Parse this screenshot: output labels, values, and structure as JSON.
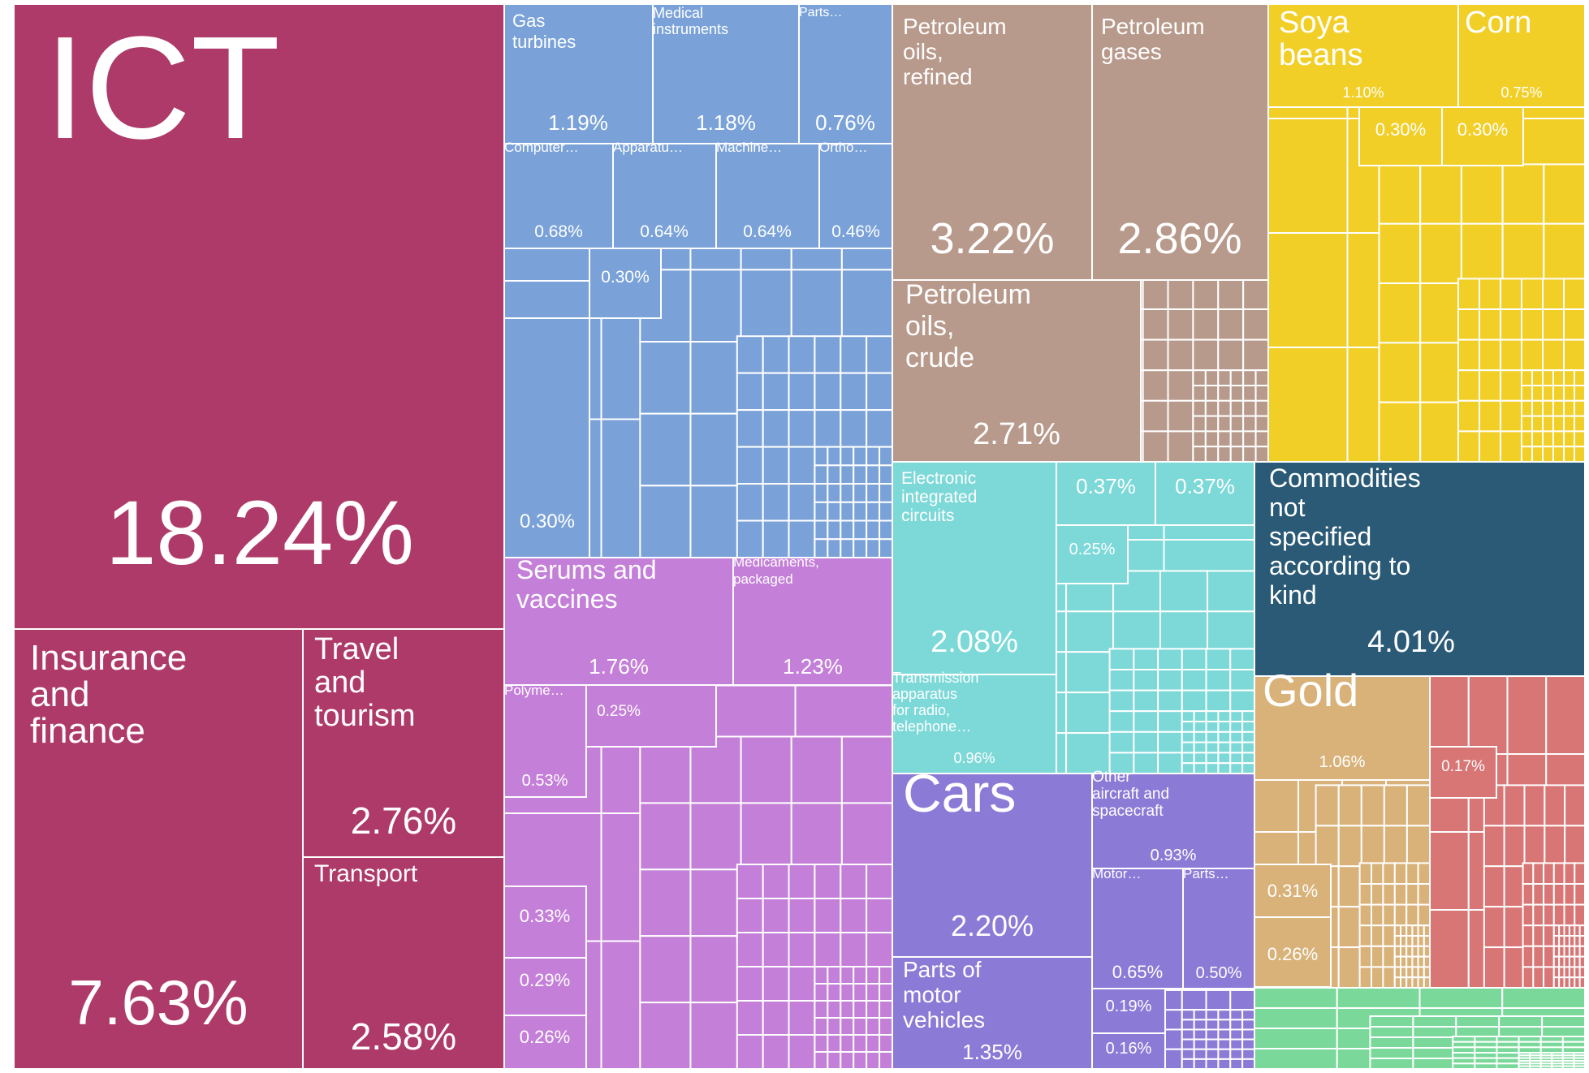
{
  "colors": {
    "services": "#AE3A69",
    "machinery": "#7AA2D8",
    "minerals": "#B89A8C",
    "vegetable": "#F2CF27",
    "chemicals": "#C47FD8",
    "electronics": "#7DD8D8",
    "transport": "#8B7AD6",
    "other": "#2A5A76",
    "metals": "#D9B27A",
    "textiles": "#D87575",
    "foodstuffs": "#7AD89A",
    "border": "#ffffff"
  },
  "chart_data": {
    "type": "treemap",
    "title": "",
    "items": [
      {
        "id": "ict",
        "group": "services",
        "label": "ICT",
        "value": 18.24,
        "value_text": "18.24%"
      },
      {
        "id": "insurance-finance",
        "group": "services",
        "label": "Insurance and finance",
        "value": 7.63,
        "value_text": "7.63%"
      },
      {
        "id": "travel-tourism",
        "group": "services",
        "label": "Travel and tourism",
        "value": 2.76,
        "value_text": "2.76%"
      },
      {
        "id": "transport-services",
        "group": "services",
        "label": "Transport",
        "value": 2.58,
        "value_text": "2.58%"
      },
      {
        "id": "gas-turbines",
        "group": "machinery",
        "label": "Gas turbines",
        "value": 1.19,
        "value_text": "1.19%"
      },
      {
        "id": "medical-instruments",
        "group": "machinery",
        "label": "Medical instruments",
        "value": 1.18,
        "value_text": "1.18%"
      },
      {
        "id": "parts-machinery",
        "group": "machinery",
        "label": "Parts…",
        "value": 0.76,
        "value_text": "0.76%"
      },
      {
        "id": "computers",
        "group": "machinery",
        "label": "Computer…",
        "value": 0.68,
        "value_text": "0.68%"
      },
      {
        "id": "apparatus",
        "group": "machinery",
        "label": "Apparatu…",
        "value": 0.64,
        "value_text": "0.64%"
      },
      {
        "id": "machines",
        "group": "machinery",
        "label": "Machine…",
        "value": 0.64,
        "value_text": "0.64%"
      },
      {
        "id": "ortho",
        "group": "machinery",
        "label": "Ortho…",
        "value": 0.46,
        "value_text": "0.46%"
      },
      {
        "id": "machinery-small-a",
        "group": "machinery",
        "label": "",
        "value": 0.3,
        "value_text": "0.30%"
      },
      {
        "id": "machinery-small-b",
        "group": "machinery",
        "label": "",
        "value": 0.3,
        "value_text": "0.30%"
      },
      {
        "id": "serums-vaccines",
        "group": "chemicals",
        "label": "Serums and vaccines",
        "value": 1.76,
        "value_text": "1.76%"
      },
      {
        "id": "medicaments-packaged",
        "group": "chemicals",
        "label": "Medicaments, packaged",
        "value": 1.23,
        "value_text": "1.23%"
      },
      {
        "id": "polymers",
        "group": "chemicals",
        "label": "Polyme…",
        "value": 0.53,
        "value_text": "0.53%"
      },
      {
        "id": "chem-small-a",
        "group": "chemicals",
        "label": "",
        "value": 0.25,
        "value_text": "0.25%"
      },
      {
        "id": "chem-small-b",
        "group": "chemicals",
        "label": "",
        "value": 0.33,
        "value_text": "0.33%"
      },
      {
        "id": "chem-small-c",
        "group": "chemicals",
        "label": "",
        "value": 0.29,
        "value_text": "0.29%"
      },
      {
        "id": "chem-small-d",
        "group": "chemicals",
        "label": "",
        "value": 0.26,
        "value_text": "0.26%"
      },
      {
        "id": "petroleum-oils-refined",
        "group": "minerals",
        "label": "Petroleum oils, refined",
        "value": 3.22,
        "value_text": "3.22%"
      },
      {
        "id": "petroleum-gases",
        "group": "minerals",
        "label": "Petroleum gases",
        "value": 2.86,
        "value_text": "2.86%"
      },
      {
        "id": "petroleum-oils-crude",
        "group": "minerals",
        "label": "Petroleum oils, crude",
        "value": 2.71,
        "value_text": "2.71%"
      },
      {
        "id": "electronic-integrated-circuits",
        "group": "electronics",
        "label": "Electronic integrated circuits",
        "value": 2.08,
        "value_text": "2.08%"
      },
      {
        "id": "transmission-apparatus",
        "group": "electronics",
        "label": "Transmission apparatus for radio, telephone…",
        "value": 0.96,
        "value_text": "0.96%"
      },
      {
        "id": "electronics-small-a",
        "group": "electronics",
        "label": "",
        "value": 0.37,
        "value_text": "0.37%"
      },
      {
        "id": "electronics-small-b",
        "group": "electronics",
        "label": "",
        "value": 0.37,
        "value_text": "0.37%"
      },
      {
        "id": "electronics-small-c",
        "group": "electronics",
        "label": "",
        "value": 0.25,
        "value_text": "0.25%"
      },
      {
        "id": "cars",
        "group": "transport",
        "label": "Cars",
        "value": 2.2,
        "value_text": "2.20%"
      },
      {
        "id": "other-aircraft",
        "group": "transport",
        "label": "Other aircraft and spacecraft",
        "value": 0.93,
        "value_text": "0.93%"
      },
      {
        "id": "motor",
        "group": "transport",
        "label": "Motor…",
        "value": 0.65,
        "value_text": "0.65%"
      },
      {
        "id": "parts-transport",
        "group": "transport",
        "label": "Parts…",
        "value": 0.5,
        "value_text": "0.50%"
      },
      {
        "id": "parts-motor-vehicles",
        "group": "transport",
        "label": "Parts of motor vehicles",
        "value": 1.35,
        "value_text": "1.35%"
      },
      {
        "id": "transport-small-a",
        "group": "transport",
        "label": "",
        "value": 0.19,
        "value_text": "0.19%"
      },
      {
        "id": "transport-small-b",
        "group": "transport",
        "label": "",
        "value": 0.16,
        "value_text": "0.16%"
      },
      {
        "id": "soya-beans",
        "group": "vegetable",
        "label": "Soya beans",
        "value": 1.1,
        "value_text": "1.10%"
      },
      {
        "id": "corn",
        "group": "vegetable",
        "label": "Corn",
        "value": 0.75,
        "value_text": "0.75%"
      },
      {
        "id": "vegetable-small-a",
        "group": "vegetable",
        "label": "",
        "value": 0.3,
        "value_text": "0.30%"
      },
      {
        "id": "vegetable-small-b",
        "group": "vegetable",
        "label": "",
        "value": 0.3,
        "value_text": "0.30%"
      },
      {
        "id": "commodities-not-specified",
        "group": "other",
        "label": "Commodities not specified according to kind",
        "value": 4.01,
        "value_text": "4.01%"
      },
      {
        "id": "gold",
        "group": "metals",
        "label": "Gold",
        "value": 1.06,
        "value_text": "1.06%"
      },
      {
        "id": "metals-small-a",
        "group": "metals",
        "label": "",
        "value": 0.31,
        "value_text": "0.31%"
      },
      {
        "id": "metals-small-b",
        "group": "metals",
        "label": "",
        "value": 0.26,
        "value_text": "0.26%"
      },
      {
        "id": "textiles-small-a",
        "group": "textiles",
        "label": "",
        "value": 0.17,
        "value_text": "0.17%"
      }
    ]
  }
}
